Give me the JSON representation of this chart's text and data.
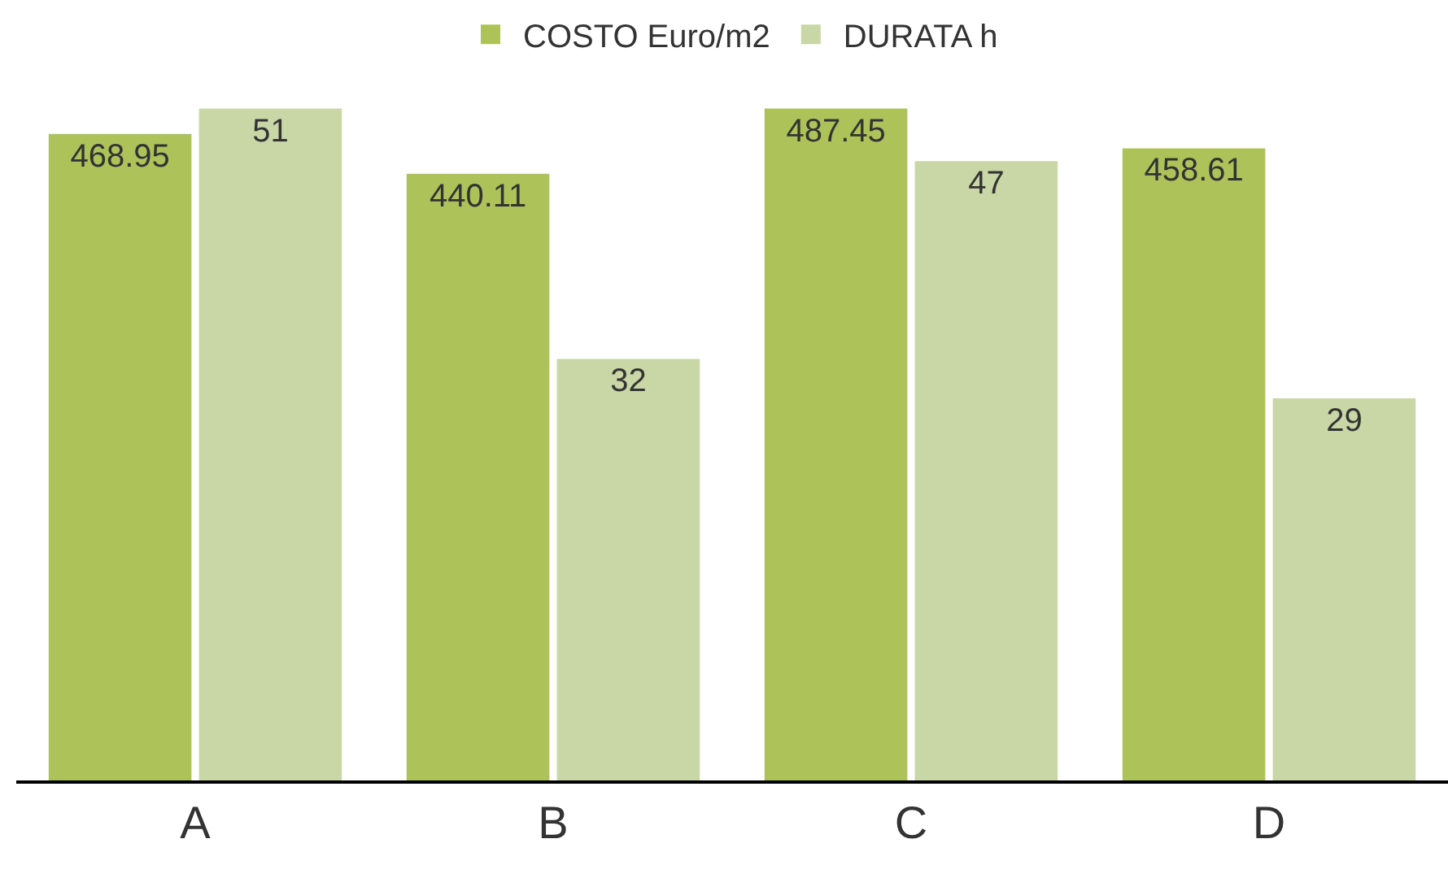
{
  "chart_data": {
    "type": "bar",
    "categories": [
      "A",
      "B",
      "C",
      "D"
    ],
    "series": [
      {
        "name": "COSTO Euro/m2",
        "color": "#adc35a",
        "values": [
          468.95,
          440.11,
          487.45,
          458.61
        ]
      },
      {
        "name": "DURATA h",
        "color": "#c9d6a5",
        "values": [
          51,
          32,
          47,
          29
        ],
        "axis": "y2"
      }
    ],
    "tick_labels": "x",
    "data_labels": true,
    "grid": false,
    "legend": "top"
  }
}
